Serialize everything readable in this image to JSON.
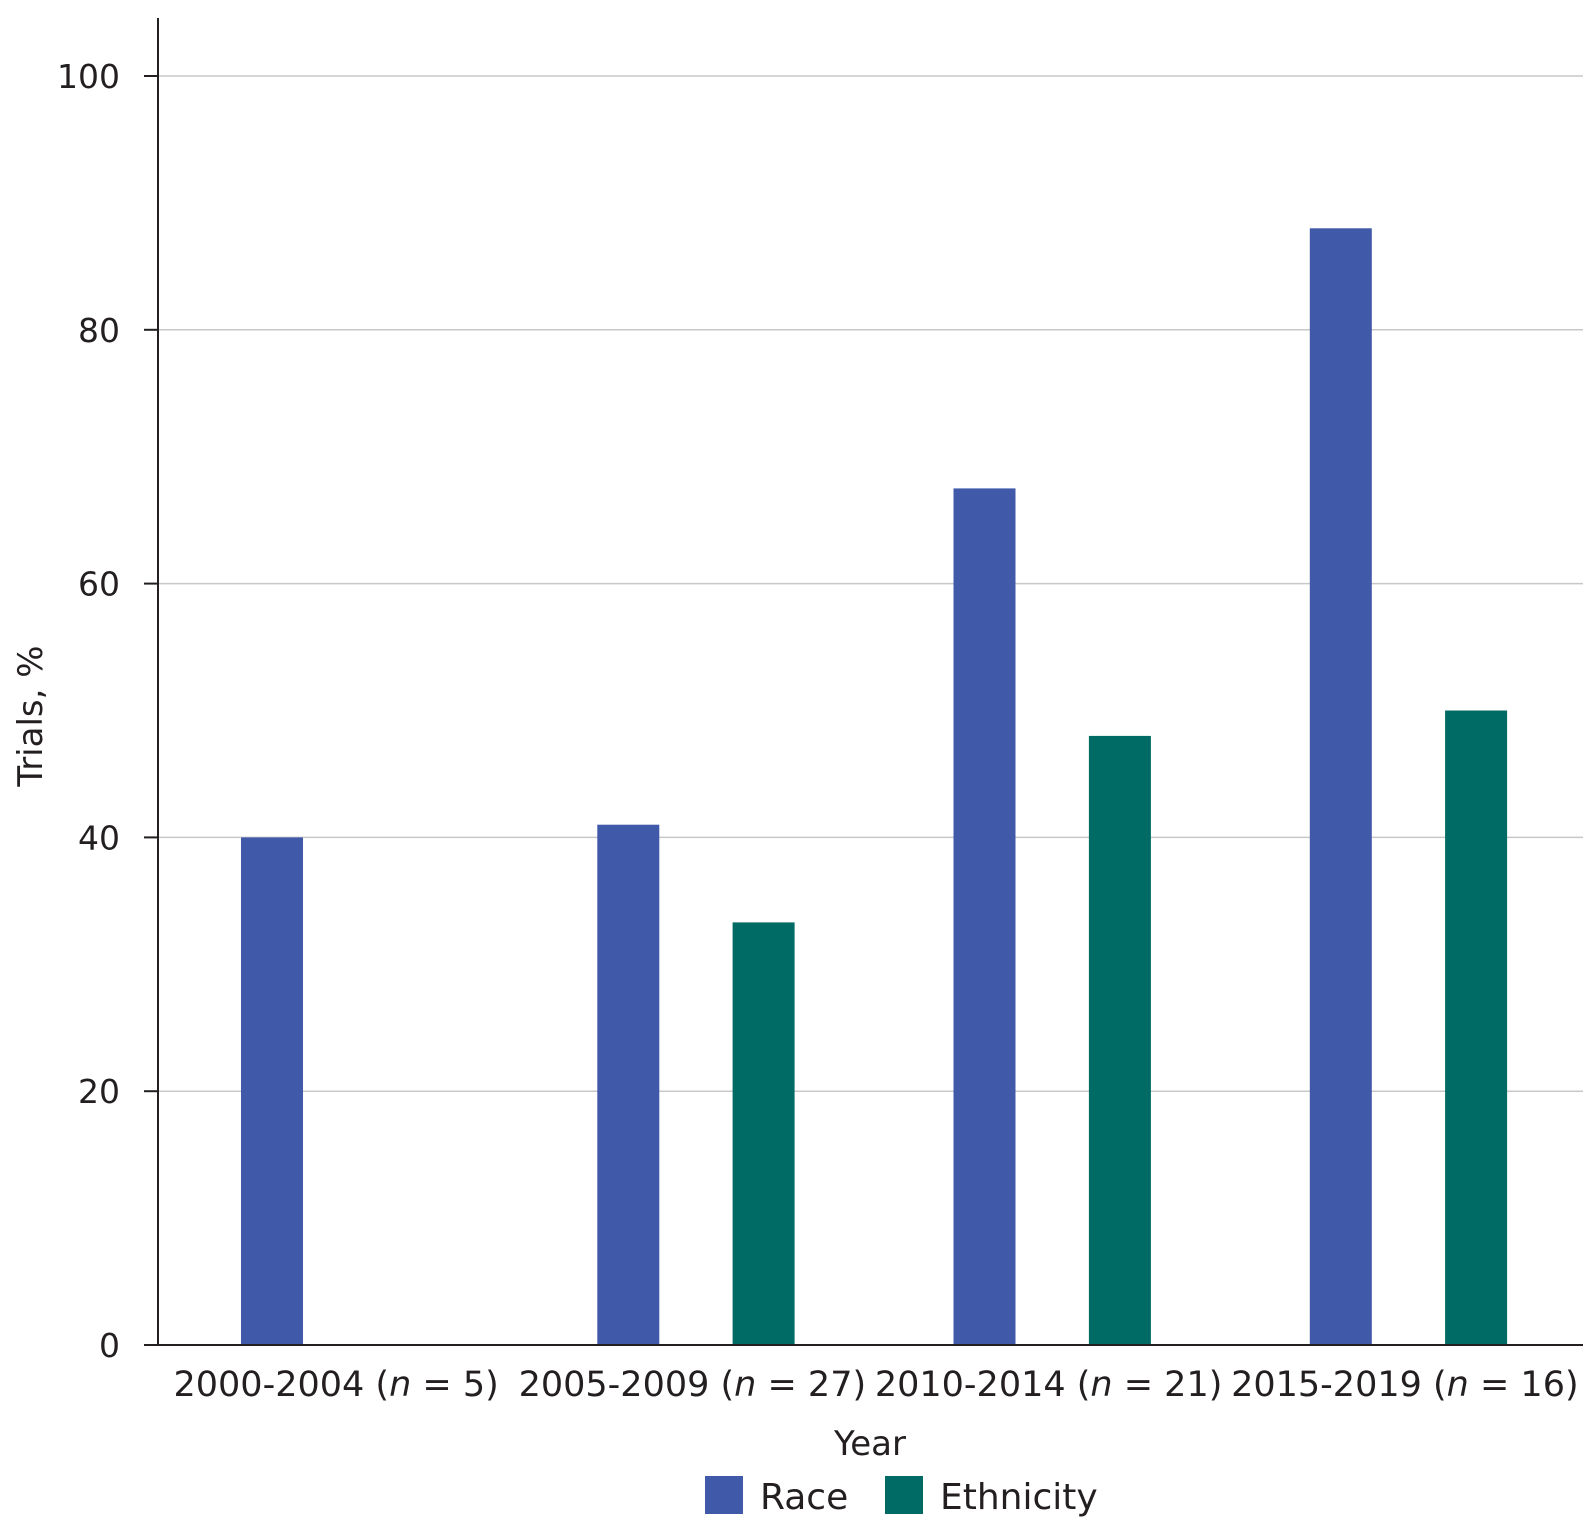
{
  "chart_data": {
    "type": "bar",
    "categories": [
      {
        "range": "2000-2004",
        "n_prefix": " (",
        "n_var": "n",
        "n_suffix": " = 5)"
      },
      {
        "range": "2005-2009",
        "n_prefix": " (",
        "n_var": "n",
        "n_suffix": " = 27)"
      },
      {
        "range": "2010-2014",
        "n_prefix": " (",
        "n_var": "n",
        "n_suffix": " = 21)"
      },
      {
        "range": "2015-2019",
        "n_prefix": " (",
        "n_var": "n",
        "n_suffix": " = 16)"
      }
    ],
    "series": [
      {
        "name": "Race",
        "color": "#4059a9",
        "values": [
          40,
          41,
          67.5,
          88
        ]
      },
      {
        "name": "Ethnicity",
        "color": "#006a65",
        "values": [
          0,
          33.3,
          48,
          50
        ]
      }
    ],
    "xlabel": "Year",
    "ylabel": "Trials, %",
    "ylim": [
      0,
      100
    ],
    "yticks": [
      0,
      20,
      40,
      60,
      80,
      100
    ],
    "grid": true,
    "legend": "bottom-center"
  }
}
